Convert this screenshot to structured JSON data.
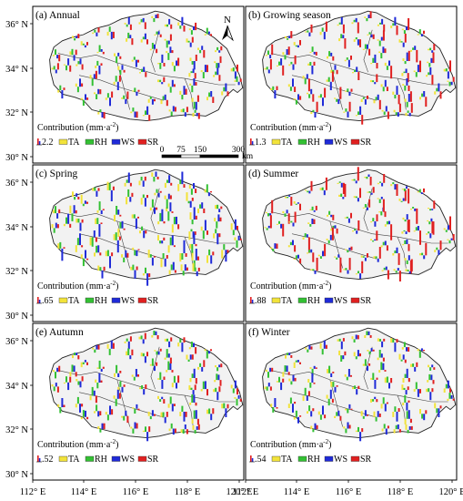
{
  "figure": {
    "colors": {
      "TA": "#f2e33a",
      "RH": "#33c033",
      "WS": "#1f2ad8",
      "SR": "#e02020",
      "basin_fill": "#f2f2f2",
      "outline": "#222222"
    },
    "north_label": "N",
    "scale_bar": {
      "labels": [
        "0",
        "75",
        "150",
        "300"
      ],
      "unit": "km"
    },
    "lat_ticks": [
      "36° N",
      "34° N",
      "32° N",
      "30° N"
    ],
    "lon_ticks": [
      "112° E",
      "114° E",
      "116° E",
      "118° E",
      "120° E"
    ],
    "legend_label": "Contribution (mm·a",
    "legend_sup": "-2",
    "legend_close": ")",
    "series": [
      "TA",
      "RH",
      "WS",
      "SR"
    ],
    "panels": [
      {
        "title": "(a) Annual",
        "ref": "2.2",
        "weights": {
          "TA": 0.25,
          "RH": 0.45,
          "WS": 0.55,
          "SR": 0.5
        }
      },
      {
        "title": "(b) Growing season",
        "ref": "1.3",
        "weights": {
          "TA": 0.2,
          "RH": 0.35,
          "WS": 0.55,
          "SR": 0.8
        }
      },
      {
        "title": "(c) Spring",
        "ref": ".65",
        "weights": {
          "TA": 0.55,
          "RH": 0.6,
          "WS": 0.8,
          "SR": 0.3
        }
      },
      {
        "title": "(d) Summer",
        "ref": ".88",
        "weights": {
          "TA": 0.15,
          "RH": 0.25,
          "WS": 0.35,
          "SR": 1.0
        }
      },
      {
        "title": "(e) Autumn",
        "ref": ".52",
        "weights": {
          "TA": 0.3,
          "RH": 0.55,
          "WS": 0.6,
          "SR": 0.45
        }
      },
      {
        "title": "(f) Winter",
        "ref": ".54",
        "weights": {
          "TA": 0.35,
          "RH": 0.5,
          "WS": 0.6,
          "SR": 0.3
        }
      }
    ]
  }
}
